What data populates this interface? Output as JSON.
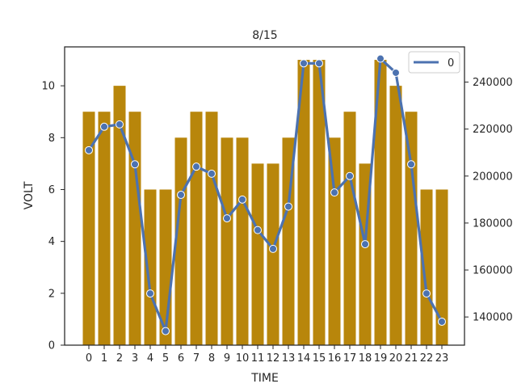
{
  "chart_data": {
    "type": "bar+line",
    "title": "8/15",
    "xlabel": "TIME",
    "ylabel": "VOLT",
    "categories": [
      "0",
      "1",
      "2",
      "3",
      "4",
      "5",
      "6",
      "7",
      "8",
      "9",
      "10",
      "11",
      "12",
      "13",
      "14",
      "15",
      "16",
      "17",
      "18",
      "19",
      "20",
      "21",
      "22",
      "23"
    ],
    "bars": {
      "values": [
        9,
        9,
        10,
        9,
        6,
        6,
        8,
        9,
        9,
        8,
        8,
        7,
        7,
        8,
        11,
        11,
        8,
        9,
        7,
        11,
        10,
        9,
        6,
        6
      ],
      "color": "#b8860b",
      "ylim": [
        0,
        11.5
      ],
      "yticks": [
        0,
        2,
        4,
        6,
        8,
        10
      ]
    },
    "line": {
      "values": [
        211000,
        221000,
        222000,
        205000,
        150000,
        134000,
        192000,
        204000,
        201000,
        182000,
        190000,
        177000,
        169000,
        187000,
        248000,
        248000,
        193000,
        200000,
        171000,
        250000,
        244000,
        205000,
        150000,
        138000
      ],
      "color": "#4c72b0",
      "ylim": [
        128000,
        255000
      ],
      "yticks": [
        140000,
        160000,
        180000,
        200000,
        220000,
        240000
      ]
    },
    "legend": {
      "entries": [
        "0"
      ],
      "placement": "top-right"
    },
    "grid": false
  }
}
